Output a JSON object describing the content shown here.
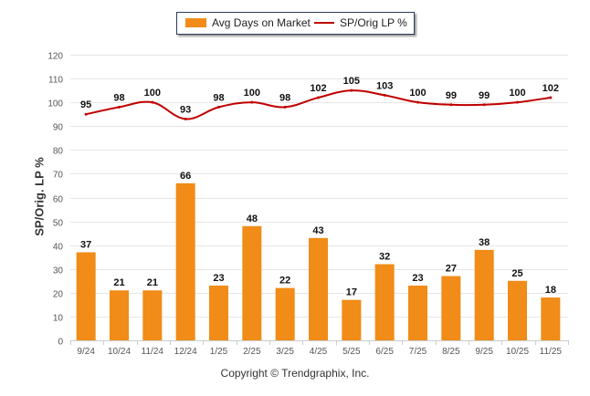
{
  "chart_data": {
    "type": "bar+line",
    "title": "",
    "xlabel": "",
    "ylabel": "SP/Orig. LP %",
    "ylim": [
      0,
      120
    ],
    "yticks": [
      0,
      10,
      20,
      30,
      40,
      50,
      60,
      70,
      80,
      90,
      100,
      110,
      120
    ],
    "grid": true,
    "legend_position": "top-center",
    "categories": [
      "9/24",
      "10/24",
      "11/24",
      "12/24",
      "1/25",
      "2/25",
      "3/25",
      "4/25",
      "5/25",
      "6/25",
      "7/25",
      "8/25",
      "9/25",
      "10/25",
      "11/25"
    ],
    "series": [
      {
        "name": "Avg Days on Market",
        "type": "bar",
        "color": "#f08c17",
        "values": [
          37,
          21,
          21,
          66,
          23,
          48,
          22,
          43,
          17,
          32,
          23,
          27,
          38,
          25,
          18
        ]
      },
      {
        "name": "SP/Orig LP %",
        "type": "line",
        "color": "#c00000",
        "values": [
          95,
          98,
          100,
          93,
          98,
          100,
          98,
          102,
          105,
          103,
          100,
          99,
          99,
          100,
          102
        ]
      }
    ]
  },
  "footer": {
    "copyright": "Copyright © Trendgraphix, Inc."
  }
}
